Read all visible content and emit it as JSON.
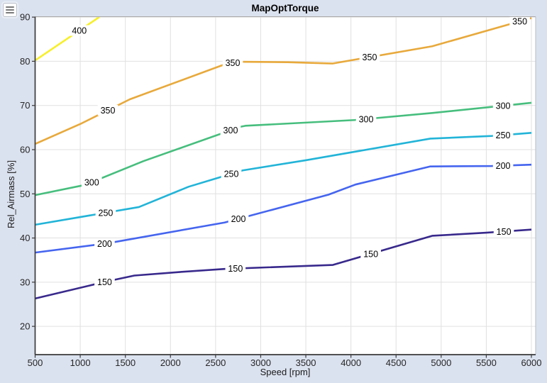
{
  "figure": {
    "title": "MapOptTorque",
    "background": "#dbe2ef"
  },
  "toolbar": {
    "menu_icon": "hamburger-menu"
  },
  "chart_data": {
    "type": "contour",
    "title": "MapOptTorque",
    "xlabel": "Speed [rpm]",
    "ylabel": "Rel_Airmass [%]",
    "xlim": [
      500,
      6047
    ],
    "ylim": [
      13.6,
      90.1
    ],
    "xticks": [
      500,
      1000,
      1500,
      2000,
      2500,
      3000,
      3500,
      4000,
      4500,
      5000,
      5500,
      6000
    ],
    "yticks": [
      20,
      30,
      40,
      50,
      60,
      70,
      80,
      90
    ],
    "grid": true,
    "legend": "none",
    "colors": {
      "plot_bg": "#ffffff",
      "grid": "#e0e0e0",
      "spine_dark": "#3a3a3a",
      "spine_top": "#a8a8a8",
      "spine_right": "#b9bdc7",
      "tick_text": "#262626"
    },
    "series": [
      {
        "level": 150,
        "color": "#38298c",
        "x": [
          500,
          1300,
          1600,
          2100,
          2600,
          3800,
          4900,
          5500,
          6000
        ],
        "y": [
          26.3,
          30.2,
          31.5,
          32.3,
          33.0,
          33.9,
          40.5,
          41.2,
          41.9
        ],
        "label_x": [
          1270,
          2720,
          4220,
          5694
        ]
      },
      {
        "level": 200,
        "color": "#4565ef",
        "x": [
          500,
          1300,
          2600,
          3750,
          4050,
          4880,
          5560,
          6000
        ],
        "y": [
          36.7,
          38.8,
          43.5,
          49.8,
          52.1,
          56.2,
          56.3,
          56.6
        ],
        "label_x": [
          1270,
          2753,
          5686
        ]
      },
      {
        "level": 250,
        "color": "#22b4d8",
        "x": [
          500,
          1650,
          2200,
          2800,
          3500,
          4880,
          5560,
          6000
        ],
        "y": [
          43.0,
          47.0,
          51.6,
          55.3,
          57.6,
          62.5,
          63.1,
          63.8
        ],
        "label_x": [
          1282,
          2674,
          5686
        ]
      },
      {
        "level": 300,
        "color": "#46be7d",
        "x": [
          500,
          1050,
          1700,
          2780,
          2830,
          4040,
          4900,
          6000
        ],
        "y": [
          49.7,
          52.0,
          57.4,
          65.2,
          65.4,
          66.7,
          68.3,
          70.6
        ],
        "label_x": [
          1127,
          2666,
          4168,
          5686
        ]
      },
      {
        "level": 350,
        "color": "#e8a93b",
        "x": [
          500,
          1000,
          1550,
          2600,
          2750,
          3300,
          3800,
          4900,
          6000
        ],
        "y": [
          61.3,
          65.8,
          71.4,
          79.3,
          79.9,
          79.8,
          79.5,
          83.4,
          89.8
        ],
        "label_x": [
          1306,
          2690,
          4207,
          5871
        ]
      },
      {
        "level": 400,
        "color": "#f7ef2a",
        "x": [
          500,
          1210
        ],
        "y": [
          80.2,
          90.0
        ],
        "label_x": [
          990
        ]
      }
    ]
  }
}
